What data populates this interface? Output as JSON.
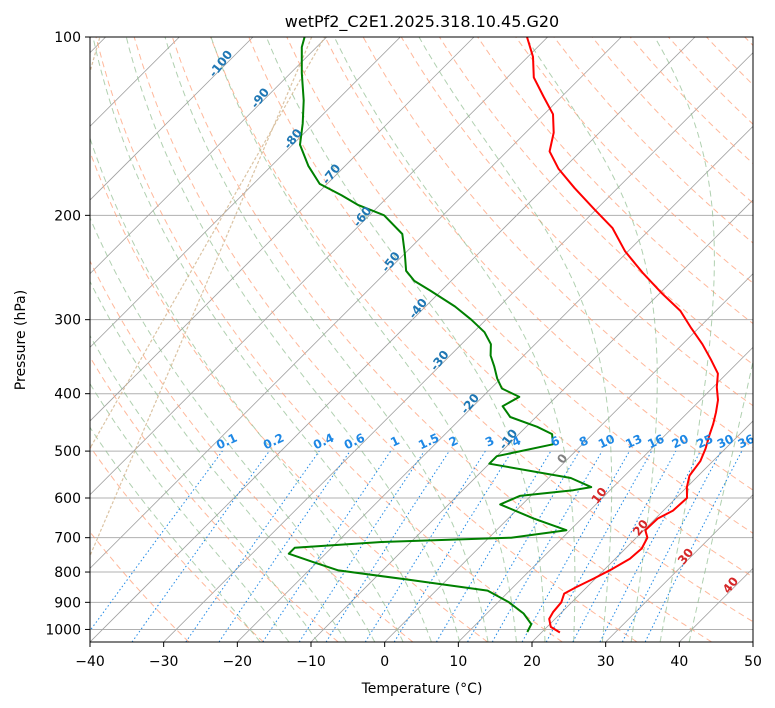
{
  "chart_data": {
    "type": "line",
    "subtype": "skew-t log-p diagram",
    "title": "wetPf2_C2E1.2025.318.10.45.G20",
    "xlabel": "Temperature (°C)",
    "ylabel": "Pressure (hPa)",
    "xlim": [
      -40,
      50
    ],
    "ylim": [
      1050,
      100
    ],
    "yscale": "log",
    "grid": true,
    "x_ticks": [
      "−40",
      "−30",
      "−20",
      "−10",
      "0",
      "10",
      "20",
      "30",
      "40",
      "50"
    ],
    "y_ticks": [
      "100",
      "200",
      "300",
      "400",
      "500",
      "600",
      "700",
      "800",
      "900",
      "1000"
    ],
    "colors": {
      "temperature": "#ff0000",
      "dewpoint": "#008000",
      "isotherm": "#a0a0a0",
      "dry_adiabat": "#ffa07a",
      "moist_adiabat": "#8fbc8f",
      "mixing_ratio": "#1e88e5",
      "dry_adiabat_label": "#1f77b4",
      "moist_label": "#d62728",
      "zero_label": "#808080",
      "curve": "#d2b48c"
    },
    "series": [
      {
        "name": "",
        "role": "temperature",
        "points": [
          [
            22.5,
            1012
          ],
          [
            20.5,
            990
          ],
          [
            19.2,
            960
          ],
          [
            18.8,
            935
          ],
          [
            18.6,
            900
          ],
          [
            17.8,
            870
          ],
          [
            18.5,
            850
          ],
          [
            19.8,
            820
          ],
          [
            21.0,
            790
          ],
          [
            22.0,
            760
          ],
          [
            22.2,
            730
          ],
          [
            21.5,
            700
          ],
          [
            20.2,
            680
          ],
          [
            20.3,
            650
          ],
          [
            21.3,
            630
          ],
          [
            21.5,
            600
          ],
          [
            20.0,
            575
          ],
          [
            18.8,
            550
          ],
          [
            18.3,
            520
          ],
          [
            17.3,
            495
          ],
          [
            16.0,
            470
          ],
          [
            15.0,
            450
          ],
          [
            13.8,
            430
          ],
          [
            12.4,
            410
          ],
          [
            10.5,
            390
          ],
          [
            8.8,
            370
          ],
          [
            5.9,
            350
          ],
          [
            2.7,
            330
          ],
          [
            -1.0,
            310
          ],
          [
            -4.8,
            290
          ],
          [
            -9.9,
            270
          ],
          [
            -15.1,
            250
          ],
          [
            -20.4,
            230
          ],
          [
            -25.3,
            210
          ],
          [
            -30.4,
            195
          ],
          [
            -35.8,
            180
          ],
          [
            -40.6,
            167
          ],
          [
            -44.2,
            156
          ],
          [
            -46.2,
            145
          ],
          [
            -48.8,
            135
          ],
          [
            -52.5,
            126
          ],
          [
            -56.4,
            117
          ],
          [
            -59.3,
            108
          ],
          [
            -62.8,
            100
          ]
        ]
      },
      {
        "name": "",
        "role": "dewpoint",
        "points": [
          [
            18.0,
            1010
          ],
          [
            17.5,
            980
          ],
          [
            15.0,
            940
          ],
          [
            11.5,
            900
          ],
          [
            7.0,
            860
          ],
          [
            -5.0,
            825
          ],
          [
            -16.0,
            795
          ],
          [
            -20.5,
            770
          ],
          [
            -25.0,
            745
          ],
          [
            -25.0,
            728
          ],
          [
            -14.0,
            712
          ],
          [
            3.0,
            700
          ],
          [
            9.5,
            680
          ],
          [
            3.5,
            650
          ],
          [
            -3.0,
            615
          ],
          [
            -1.5,
            595
          ],
          [
            5.0,
            582
          ],
          [
            7.0,
            575
          ],
          [
            3.0,
            555
          ],
          [
            -10.0,
            525
          ],
          [
            -10.0,
            510
          ],
          [
            -4.0,
            487
          ],
          [
            -5.5,
            468
          ],
          [
            -8.5,
            455
          ],
          [
            -13.5,
            438
          ],
          [
            -16.0,
            420
          ],
          [
            -15.0,
            405
          ],
          [
            -18.5,
            392
          ],
          [
            -20.5,
            377
          ],
          [
            -22.5,
            360
          ],
          [
            -24.5,
            345
          ],
          [
            -26.0,
            330
          ],
          [
            -28.5,
            315
          ],
          [
            -32.0,
            300
          ],
          [
            -36.0,
            285
          ],
          [
            -41.5,
            268
          ],
          [
            -45.0,
            258
          ],
          [
            -47.5,
            248
          ],
          [
            -50.0,
            232
          ],
          [
            -53.0,
            215
          ],
          [
            -58.0,
            200
          ],
          [
            -63.0,
            192
          ],
          [
            -66.5,
            185
          ],
          [
            -71.0,
            177
          ],
          [
            -75.0,
            165
          ],
          [
            -79.0,
            152
          ],
          [
            -81.5,
            140
          ],
          [
            -84.5,
            128
          ],
          [
            -88.5,
            115
          ],
          [
            -92.0,
            104
          ],
          [
            -93.0,
            100
          ]
        ]
      }
    ],
    "dry_adiabat_labels": [
      "-100",
      "-90",
      "-80",
      "-70",
      "-60",
      "-50",
      "-40",
      "-30",
      "-20",
      "-10"
    ],
    "moist_adiabat_labels": [
      "0",
      "10",
      "20",
      "30",
      "40"
    ],
    "mixing_ratio_labels": [
      "0.1",
      "0.2",
      "0.4",
      "0.6",
      "1",
      "1.5",
      "2",
      "3",
      "4",
      "6",
      "8",
      "10",
      "13",
      "16",
      "20",
      "25",
      "30",
      "36"
    ],
    "mixing_ratio_values": [
      0.1,
      0.2,
      0.4,
      0.6,
      1,
      1.5,
      2,
      3,
      4,
      6,
      8,
      10,
      13,
      16,
      20,
      25,
      30,
      36
    ]
  }
}
